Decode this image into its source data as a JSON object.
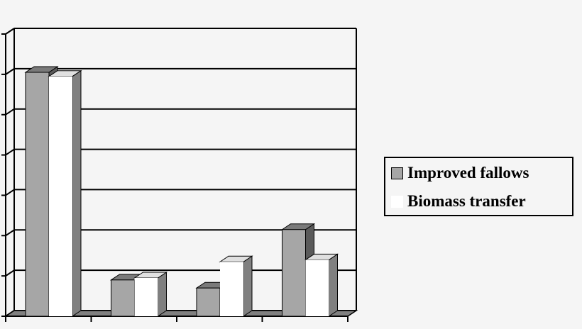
{
  "chart_data": {
    "type": "bar",
    "style": "3d-clustered",
    "categories": [
      "",
      "",
      "",
      ""
    ],
    "series": [
      {
        "name": "Improved fallows",
        "values": [
          6.05,
          0.9,
          0.7,
          2.15
        ],
        "color": "#a6a6a6"
      },
      {
        "name": "Biomass transfer",
        "values": [
          5.95,
          0.95,
          1.35,
          1.4
        ],
        "color": "#ffffff"
      }
    ],
    "ylim": [
      0,
      7
    ],
    "grid": true,
    "legend_position": "right",
    "title": "",
    "xlabel": "",
    "ylabel": ""
  }
}
